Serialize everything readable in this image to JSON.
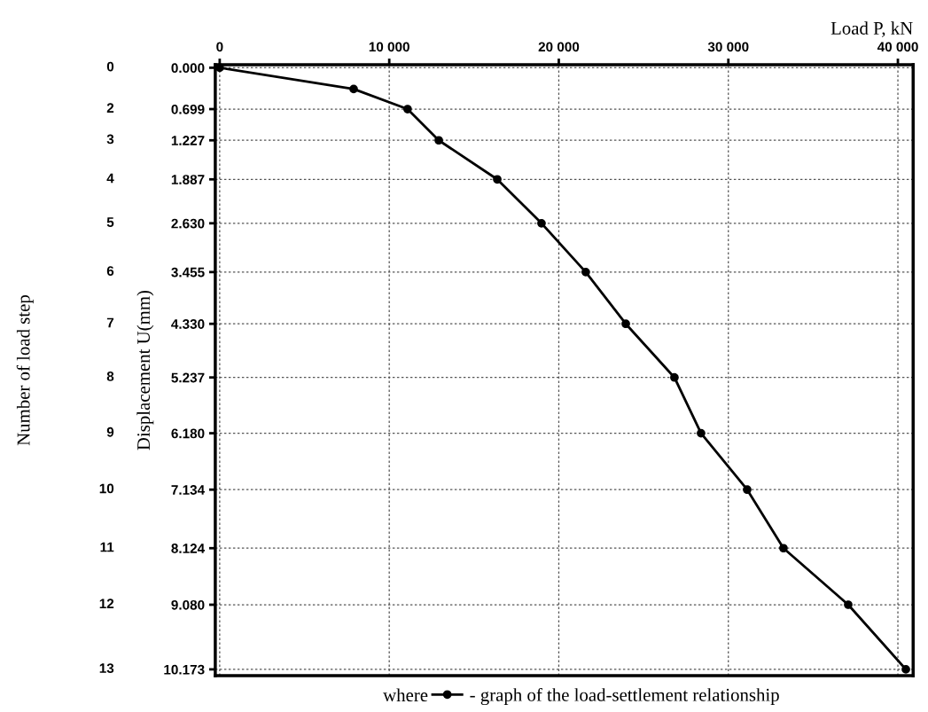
{
  "chart_data": {
    "type": "line",
    "xlabel": "Load P, kN",
    "ylabel": "Displacement U(mm)",
    "annotations": [
      "where",
      "Number of load step",
      "0",
      "2",
      "3",
      "4",
      "5",
      "6",
      "7",
      "8",
      "9",
      "10",
      "11",
      "12",
      "13"
    ],
    "series": [
      {
        "name": "- graph of the load-settlement relationship",
        "color": "#000000",
        "x": [
          0,
          7900,
          11080,
          12920,
          16370,
          18980,
          21590,
          23950,
          26820,
          28390,
          31110,
          33250,
          37070,
          40470
        ],
        "values": [
          0.0,
          0.36,
          0.699,
          1.227,
          1.887,
          2.63,
          3.455,
          4.33,
          5.237,
          6.18,
          7.134,
          8.124,
          9.08,
          10.173
        ]
      }
    ],
    "xlim": [
      -260,
      40900
    ],
    "xticks": [
      0,
      {
        "value": 10000,
        "label": "10 000"
      },
      {
        "value": 20000,
        "label": "20 000"
      },
      {
        "value": 30000,
        "label": "30 000"
      },
      {
        "value": 40000,
        "label": "40 000"
      }
    ],
    "ylim": [
      10.28,
      -0.05
    ],
    "yticks": [
      {
        "value": 0,
        "label": "0.000"
      },
      0.699,
      1.227,
      1.887,
      {
        "value": 2.63,
        "label": "2.630"
      },
      3.455,
      {
        "value": 4.33,
        "label": "4.330"
      },
      5.237,
      {
        "value": 6.18,
        "label": "6.180"
      },
      7.134,
      8.124,
      {
        "value": 9.08,
        "label": "9.080"
      },
      10.173
    ],
    "grid": true,
    "legend": "bottom",
    "marker": "circle",
    "line_style": "solid"
  }
}
